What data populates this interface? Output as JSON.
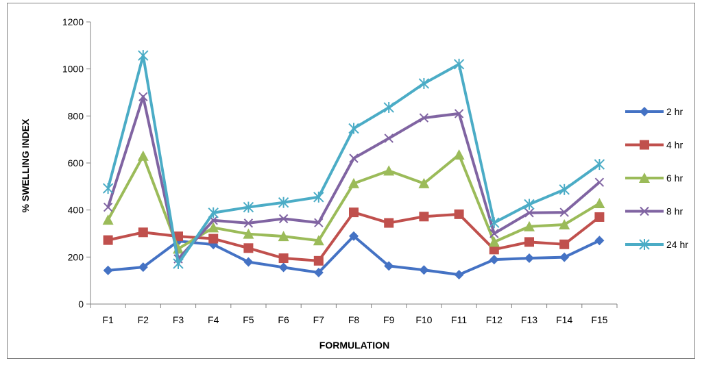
{
  "chart_data": {
    "type": "line",
    "title": "",
    "xlabel": "FORMULATION",
    "ylabel": "% SWELLING INDEX",
    "ylim": [
      0,
      1200
    ],
    "yticks": [
      0,
      200,
      400,
      600,
      800,
      1000,
      1200
    ],
    "grid": false,
    "legend_position": "right",
    "categories": [
      "F1",
      "F2",
      "F3",
      "F4",
      "F5",
      "F6",
      "F7",
      "F8",
      "F9",
      "F10",
      "F11",
      "F12",
      "F13",
      "F14",
      "F15"
    ],
    "series": [
      {
        "name": "2 hr",
        "color": "#4472C4",
        "marker": "diamond",
        "values": [
          143,
          157,
          268,
          253,
          179,
          156,
          134,
          289,
          162,
          145,
          125,
          189,
          195,
          199,
          270
        ]
      },
      {
        "name": "4 hr",
        "color": "#C0504D",
        "marker": "square",
        "values": [
          272,
          305,
          288,
          278,
          238,
          195,
          184,
          390,
          345,
          372,
          382,
          232,
          264,
          254,
          370
        ]
      },
      {
        "name": "6 hr",
        "color": "#9BBB59",
        "marker": "triangle",
        "values": [
          358,
          630,
          235,
          325,
          298,
          288,
          270,
          513,
          567,
          513,
          635,
          264,
          330,
          338,
          428
        ]
      },
      {
        "name": "8 hr",
        "color": "#8064A2",
        "marker": "x",
        "values": [
          412,
          882,
          192,
          356,
          344,
          363,
          346,
          620,
          705,
          792,
          810,
          300,
          388,
          390,
          518
        ]
      },
      {
        "name": "24 hr",
        "color": "#4BACC6",
        "marker": "star",
        "values": [
          492,
          1057,
          172,
          388,
          412,
          432,
          455,
          747,
          836,
          938,
          1020,
          346,
          424,
          487,
          594
        ]
      }
    ]
  }
}
